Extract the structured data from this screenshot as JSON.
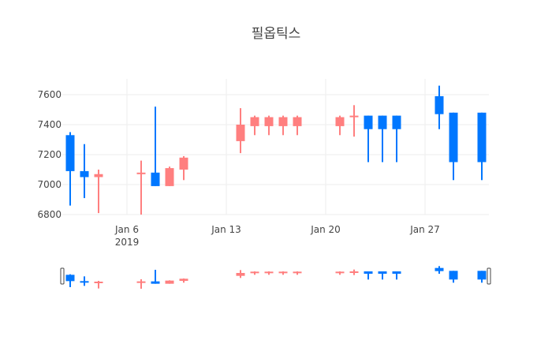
{
  "title": "필옵틱스",
  "colors": {
    "increasing": "#FF7F7F",
    "decreasing": "#0077FF",
    "grid": "#EEEEEE",
    "text": "#444444"
  },
  "chart_data": {
    "type": "candlestick",
    "title": "필옵틱스",
    "xlabel": "",
    "ylabel": "",
    "ylim": [
      6800,
      7700
    ],
    "yticks": [
      6800,
      7000,
      7200,
      7400,
      7600
    ],
    "xticks": [
      {
        "date": "2019-01-06",
        "label": "Jan 6",
        "sublabel": "2019"
      },
      {
        "date": "2019-01-13",
        "label": "Jan 13"
      },
      {
        "date": "2019-01-20",
        "label": "Jan 20"
      },
      {
        "date": "2019-01-27",
        "label": "Jan 27"
      }
    ],
    "grid": true,
    "rangeslider": true,
    "series": [
      {
        "date": "2019-01-02",
        "open": 7330,
        "high": 7350,
        "low": 6860,
        "close": 7090
      },
      {
        "date": "2019-01-03",
        "open": 7090,
        "high": 7270,
        "low": 6910,
        "close": 7050
      },
      {
        "date": "2019-01-04",
        "open": 7050,
        "high": 7100,
        "low": 6810,
        "close": 7070
      },
      {
        "date": "2019-01-07",
        "open": 7070,
        "high": 7160,
        "low": 6800,
        "close": 7080
      },
      {
        "date": "2019-01-08",
        "open": 7080,
        "high": 7520,
        "low": 6990,
        "close": 6990
      },
      {
        "date": "2019-01-09",
        "open": 6990,
        "high": 7120,
        "low": 6990,
        "close": 7110
      },
      {
        "date": "2019-01-10",
        "open": 7100,
        "high": 7190,
        "low": 7030,
        "close": 7180
      },
      {
        "date": "2019-01-14",
        "open": 7290,
        "high": 7510,
        "low": 7210,
        "close": 7400
      },
      {
        "date": "2019-01-15",
        "open": 7390,
        "high": 7460,
        "low": 7330,
        "close": 7450
      },
      {
        "date": "2019-01-16",
        "open": 7390,
        "high": 7460,
        "low": 7330,
        "close": 7450
      },
      {
        "date": "2019-01-17",
        "open": 7390,
        "high": 7460,
        "low": 7330,
        "close": 7450
      },
      {
        "date": "2019-01-18",
        "open": 7390,
        "high": 7460,
        "low": 7330,
        "close": 7450
      },
      {
        "date": "2019-01-21",
        "open": 7390,
        "high": 7460,
        "low": 7330,
        "close": 7450
      },
      {
        "date": "2019-01-22",
        "open": 7450,
        "high": 7530,
        "low": 7320,
        "close": 7460
      },
      {
        "date": "2019-01-23",
        "open": 7460,
        "high": 7460,
        "low": 7150,
        "close": 7370
      },
      {
        "date": "2019-01-24",
        "open": 7460,
        "high": 7460,
        "low": 7150,
        "close": 7370
      },
      {
        "date": "2019-01-25",
        "open": 7460,
        "high": 7460,
        "low": 7150,
        "close": 7370
      },
      {
        "date": "2019-01-28",
        "open": 7590,
        "high": 7660,
        "low": 7370,
        "close": 7470
      },
      {
        "date": "2019-01-29",
        "open": 7480,
        "high": 7480,
        "low": 7030,
        "close": 7150
      },
      {
        "date": "2019-01-31",
        "open": 7480,
        "high": 7480,
        "low": 7030,
        "close": 7150
      }
    ]
  }
}
